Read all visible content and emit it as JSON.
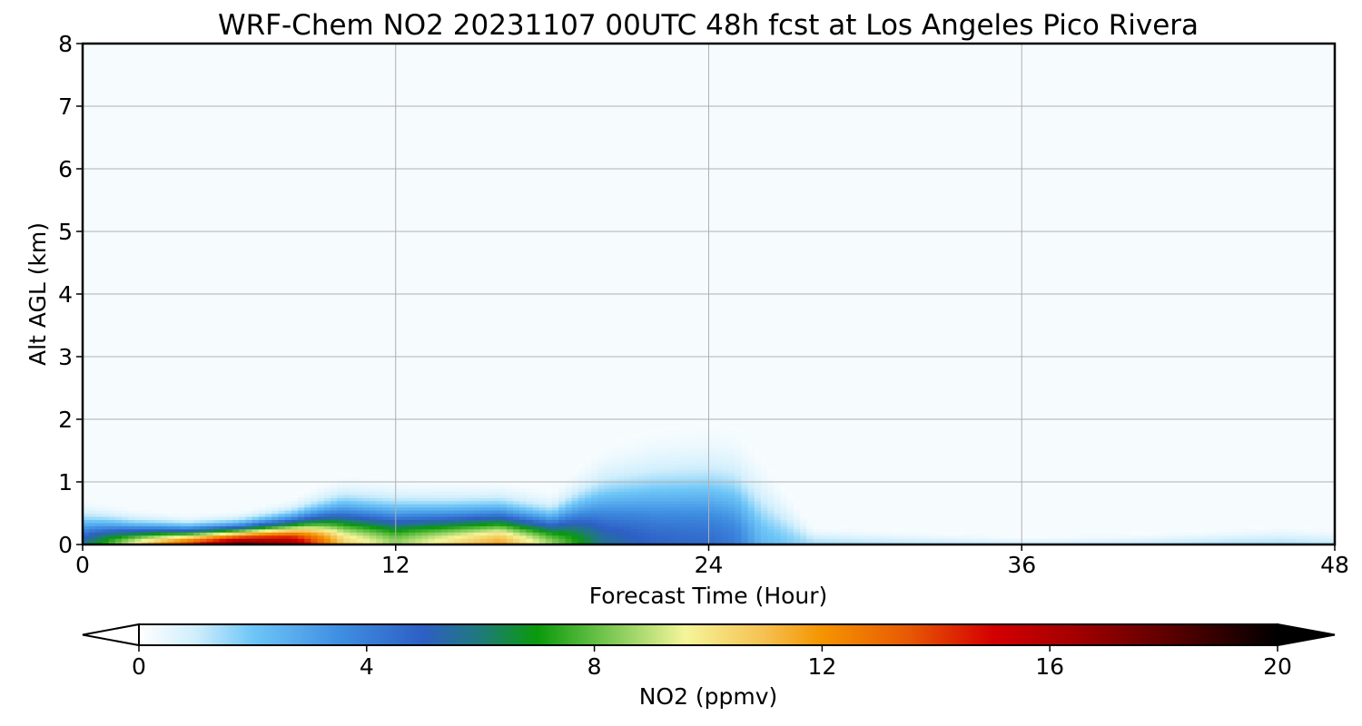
{
  "chart_data": {
    "type": "heatmap",
    "title": "WRF-Chem NO2  20231107 00UTC 48h fcst at Los Angeles Pico Rivera",
    "xlabel": "Forecast Time (Hour)",
    "ylabel": "Alt AGL (km)",
    "xlim": [
      0,
      48
    ],
    "ylim": [
      0,
      8
    ],
    "xticks": [
      "0",
      "12",
      "24",
      "36",
      "48"
    ],
    "yticks": [
      "0",
      "1",
      "2",
      "3",
      "4",
      "5",
      "6",
      "7",
      "8"
    ],
    "grid": true,
    "colorbar": {
      "label": "NO2  (ppmv)",
      "min": 0,
      "max": 20,
      "ticks": [
        "0",
        "4",
        "8",
        "12",
        "16",
        "20"
      ],
      "extend": "both",
      "orientation": "horizontal",
      "stops": [
        {
          "v": 0,
          "color": "#ffffff"
        },
        {
          "v": 1,
          "color": "#cfeefc"
        },
        {
          "v": 2,
          "color": "#6ec6f7"
        },
        {
          "v": 3.5,
          "color": "#3f8fe2"
        },
        {
          "v": 5,
          "color": "#2d5fc4"
        },
        {
          "v": 6,
          "color": "#1f7a7a"
        },
        {
          "v": 7,
          "color": "#0a9a0a"
        },
        {
          "v": 8.5,
          "color": "#8fd060"
        },
        {
          "v": 9.6,
          "color": "#f5f59a"
        },
        {
          "v": 11,
          "color": "#f5c050"
        },
        {
          "v": 12,
          "color": "#f59400"
        },
        {
          "v": 13.5,
          "color": "#e85a05"
        },
        {
          "v": 15,
          "color": "#d40000"
        },
        {
          "v": 16.5,
          "color": "#a00000"
        },
        {
          "v": 18,
          "color": "#600000"
        },
        {
          "v": 20,
          "color": "#000000"
        }
      ]
    },
    "field": {
      "description_free": true,
      "x": [
        0,
        2,
        4,
        6,
        8,
        10,
        12,
        14,
        16,
        18,
        19,
        20,
        22,
        24,
        25,
        26,
        28,
        32,
        36,
        40,
        44,
        46,
        48
      ],
      "surface_conc": [
        5,
        9,
        13,
        17,
        16,
        10,
        8,
        9.5,
        11,
        8,
        6.5,
        5,
        4.2,
        4,
        3.5,
        1.8,
        0.9,
        0.6,
        0.5,
        0.5,
        0.8,
        0.8,
        0.6
      ],
      "depth_km": [
        0.8,
        0.6,
        0.5,
        0.55,
        0.75,
        1.15,
        1.1,
        1.05,
        1.05,
        0.9,
        1.3,
        1.7,
        2.0,
        2.1,
        2.05,
        1.6,
        0.35,
        0.25,
        0.15,
        0.2,
        0.3,
        0.35,
        0.3
      ]
    }
  }
}
